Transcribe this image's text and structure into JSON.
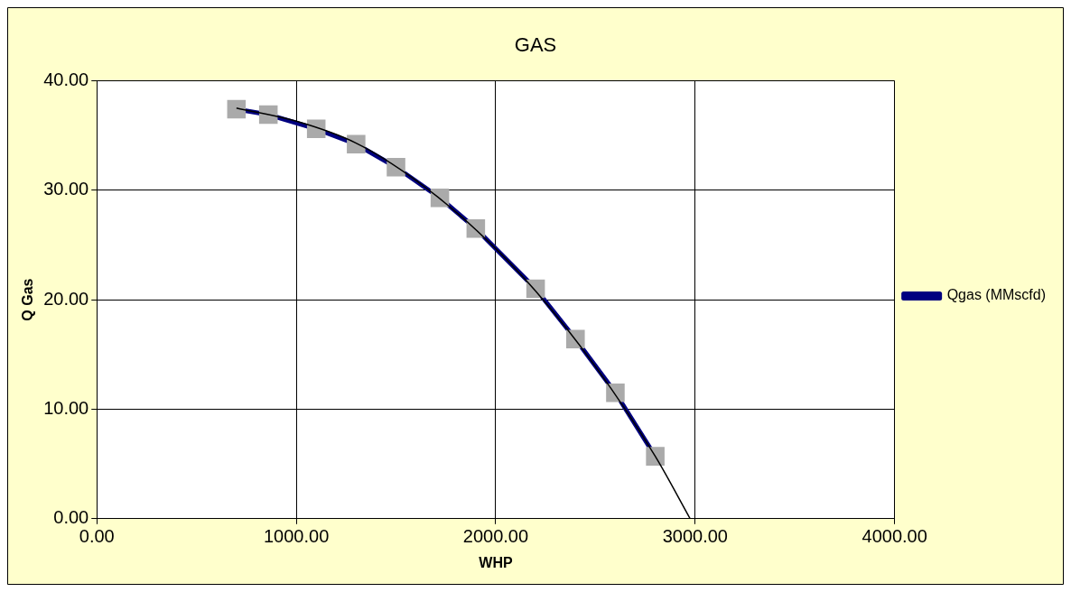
{
  "chart_data": {
    "type": "line",
    "title": "GAS",
    "xlabel": "WHP",
    "ylabel": "Q Gas",
    "xlim": [
      0,
      4000
    ],
    "xticks": [
      {
        "value": 0,
        "label": "0.00"
      },
      {
        "value": 1000,
        "label": "1000.00"
      },
      {
        "value": 2000,
        "label": "2000.00"
      },
      {
        "value": 3000,
        "label": "3000.00"
      },
      {
        "value": 4000,
        "label": "4000.00"
      }
    ],
    "ylim": [
      0,
      40
    ],
    "yticks": [
      {
        "value": 0,
        "label": "0.00"
      },
      {
        "value": 10,
        "label": "10.00"
      },
      {
        "value": 20,
        "label": "20.00"
      },
      {
        "value": 30,
        "label": "30.00"
      },
      {
        "value": 40,
        "label": "40.00"
      }
    ],
    "grid": true,
    "legend": "right",
    "marker": "square",
    "series": [
      {
        "name": "Qgas (MMscfd)",
        "color": "#000080",
        "x": [
          700,
          860,
          1100,
          1300,
          1500,
          1720,
          1900,
          2200,
          2400,
          2600,
          2800
        ],
        "values": [
          37.4,
          36.9,
          35.6,
          34.2,
          32.1,
          29.3,
          26.5,
          21.0,
          16.4,
          11.5,
          5.7
        ]
      },
      {
        "type": "line",
        "color": "#000000",
        "marker": "none",
        "x": [
          700,
          1000,
          1300,
          1600,
          1900,
          2200,
          2500,
          2800,
          2975
        ],
        "values": [
          37.5,
          36.3,
          34.3,
          30.9,
          26.4,
          20.8,
          13.9,
          5.7,
          0
        ]
      }
    ]
  }
}
